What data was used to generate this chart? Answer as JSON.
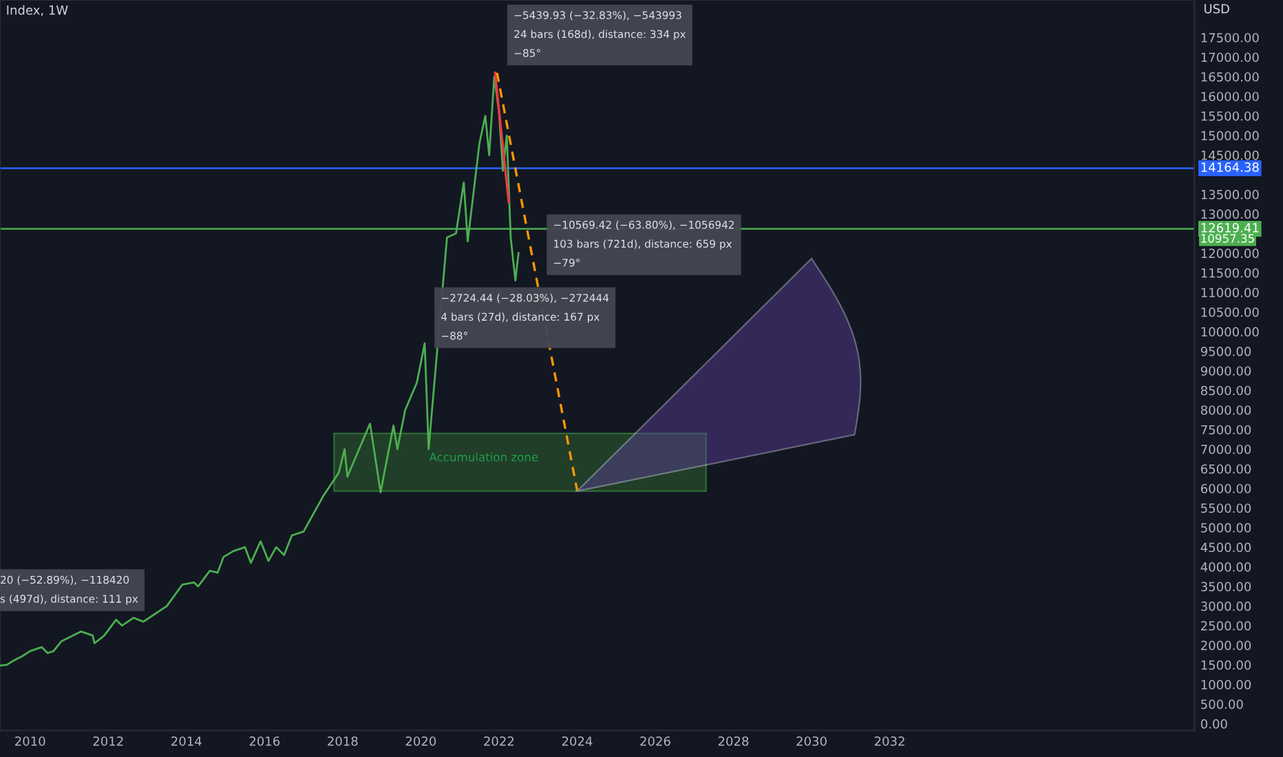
{
  "chart_data": {
    "type": "line",
    "title": "Index, 1W",
    "x": [
      2009.23,
      2009.4,
      2009.6,
      2009.8,
      2010.0,
      2010.3,
      2010.45,
      2010.6,
      2010.8,
      2011.0,
      2011.3,
      2011.6,
      2011.65,
      2011.9,
      2012.2,
      2012.35,
      2012.65,
      2012.9,
      2013.2,
      2013.5,
      2013.9,
      2014.2,
      2014.3,
      2014.6,
      2014.8,
      2014.95,
      2015.2,
      2015.5,
      2015.65,
      2015.9,
      2016.1,
      2016.3,
      2016.5,
      2016.7,
      2017.0,
      2017.5,
      2017.9,
      2018.05,
      2018.12,
      2018.7,
      2018.97,
      2019.3,
      2019.4,
      2019.6,
      2019.9,
      2020.1,
      2020.2,
      2020.67,
      2020.9,
      2021.1,
      2021.2,
      2021.5,
      2021.65,
      2021.75,
      2021.88,
      2022.0,
      2022.1,
      2022.2,
      2022.3,
      2022.42,
      2022.5
    ],
    "series": [
      {
        "color": "#4caf50",
        "values": [
          1480,
          1500,
          1620,
          1720,
          1850,
          1950,
          1800,
          1850,
          2100,
          2200,
          2350,
          2250,
          2050,
          2250,
          2650,
          2500,
          2700,
          2600,
          2800,
          3000,
          3550,
          3600,
          3500,
          3900,
          3850,
          4250,
          4400,
          4500,
          4100,
          4650,
          4150,
          4500,
          4300,
          4800,
          4900,
          5800,
          6400,
          7000,
          6300,
          7650,
          5900,
          7600,
          7000,
          8000,
          8700,
          9700,
          7000,
          12400,
          12500,
          13800,
          12300,
          14800,
          15500,
          14500,
          16500,
          15600,
          14100,
          15000,
          12400,
          11300,
          12000
        ]
      },
      {
        "type": "line",
        "color": "#f23645",
        "x": [
          2021.9,
          2022.25
        ],
        "values": [
          16600,
          13300
        ]
      },
      {
        "type": "line",
        "color": "#ff9800",
        "line_style": "dashed",
        "x": [
          2021.95,
          2024.0
        ],
        "values": [
          16600,
          5950
        ]
      }
    ],
    "xlim": [
      2009.23,
      2039.8
    ],
    "xticks": [
      2010,
      2012,
      2014,
      2016,
      2018,
      2020,
      2022,
      2024,
      2026,
      2028,
      2030,
      2032
    ],
    "ylim": [
      -175,
      18456
    ],
    "yticks": [
      {
        "value": 0,
        "label": "0.00"
      },
      {
        "value": 500,
        "label": "500.00"
      },
      {
        "value": 1000,
        "label": "1000.00"
      },
      {
        "value": 1500,
        "label": "1500.00"
      },
      {
        "value": 2000,
        "label": "2000.00"
      },
      {
        "value": 2500,
        "label": "2500.00"
      },
      {
        "value": 3000,
        "label": "3000.00"
      },
      {
        "value": 3500,
        "label": "3500.00"
      },
      {
        "value": 4000,
        "label": "4000.00"
      },
      {
        "value": 4500,
        "label": "4500.00"
      },
      {
        "value": 5000,
        "label": "5000.00"
      },
      {
        "value": 5500,
        "label": "5500.00"
      },
      {
        "value": 6000,
        "label": "6000.00"
      },
      {
        "value": 6500,
        "label": "6500.00"
      },
      {
        "value": 7000,
        "label": "7000.00"
      },
      {
        "value": 7500,
        "label": "7500.00"
      },
      {
        "value": 8000,
        "label": "8000.00"
      },
      {
        "value": 8500,
        "label": "8500.00"
      },
      {
        "value": 9000,
        "label": "9000.00"
      },
      {
        "value": 9500,
        "label": "9500.00"
      },
      {
        "value": 10000,
        "label": "10000.00"
      },
      {
        "value": 10500,
        "label": "10500.00"
      },
      {
        "value": 11000,
        "label": "11000.00"
      },
      {
        "value": 11500,
        "label": "11500.00"
      },
      {
        "value": 12000,
        "label": "12000.00"
      },
      {
        "value": 13000,
        "label": "13000.00"
      },
      {
        "value": 13500,
        "label": "13500.00"
      },
      {
        "value": 14500,
        "label": "14500.00"
      },
      {
        "value": 15000,
        "label": "15000.00"
      },
      {
        "value": 15500,
        "label": "15500.00"
      },
      {
        "value": 16000,
        "label": "16000.00"
      },
      {
        "value": 16500,
        "label": "16500.00"
      },
      {
        "value": 17000,
        "label": "17000.00"
      },
      {
        "value": 17500,
        "label": "17500.00"
      }
    ],
    "ref_lines": [
      {
        "axis": "y",
        "value": 14164.38,
        "label": "14164.38",
        "color": "#2962ff"
      },
      {
        "axis": "y",
        "value": 12619.41,
        "label": "12619.41",
        "color": "#4caf50"
      }
    ],
    "annotations": [
      "USD",
      "10957.35",
      "−5439.93 (−32.83%), −543993\n24 bars (168d), distance: 334 px\n−85°",
      "−10569.42 (−63.80%), −1056942\n103 bars (721d), distance: 659 px\n−79°",
      "−2724.44 (−28.03%), −272444\n4 bars (27d), distance: 167 px\n−88°",
      "20 (−52.89%), −118420\ns (497d), distance: 111 px",
      "Accumulation zone"
    ]
  }
}
